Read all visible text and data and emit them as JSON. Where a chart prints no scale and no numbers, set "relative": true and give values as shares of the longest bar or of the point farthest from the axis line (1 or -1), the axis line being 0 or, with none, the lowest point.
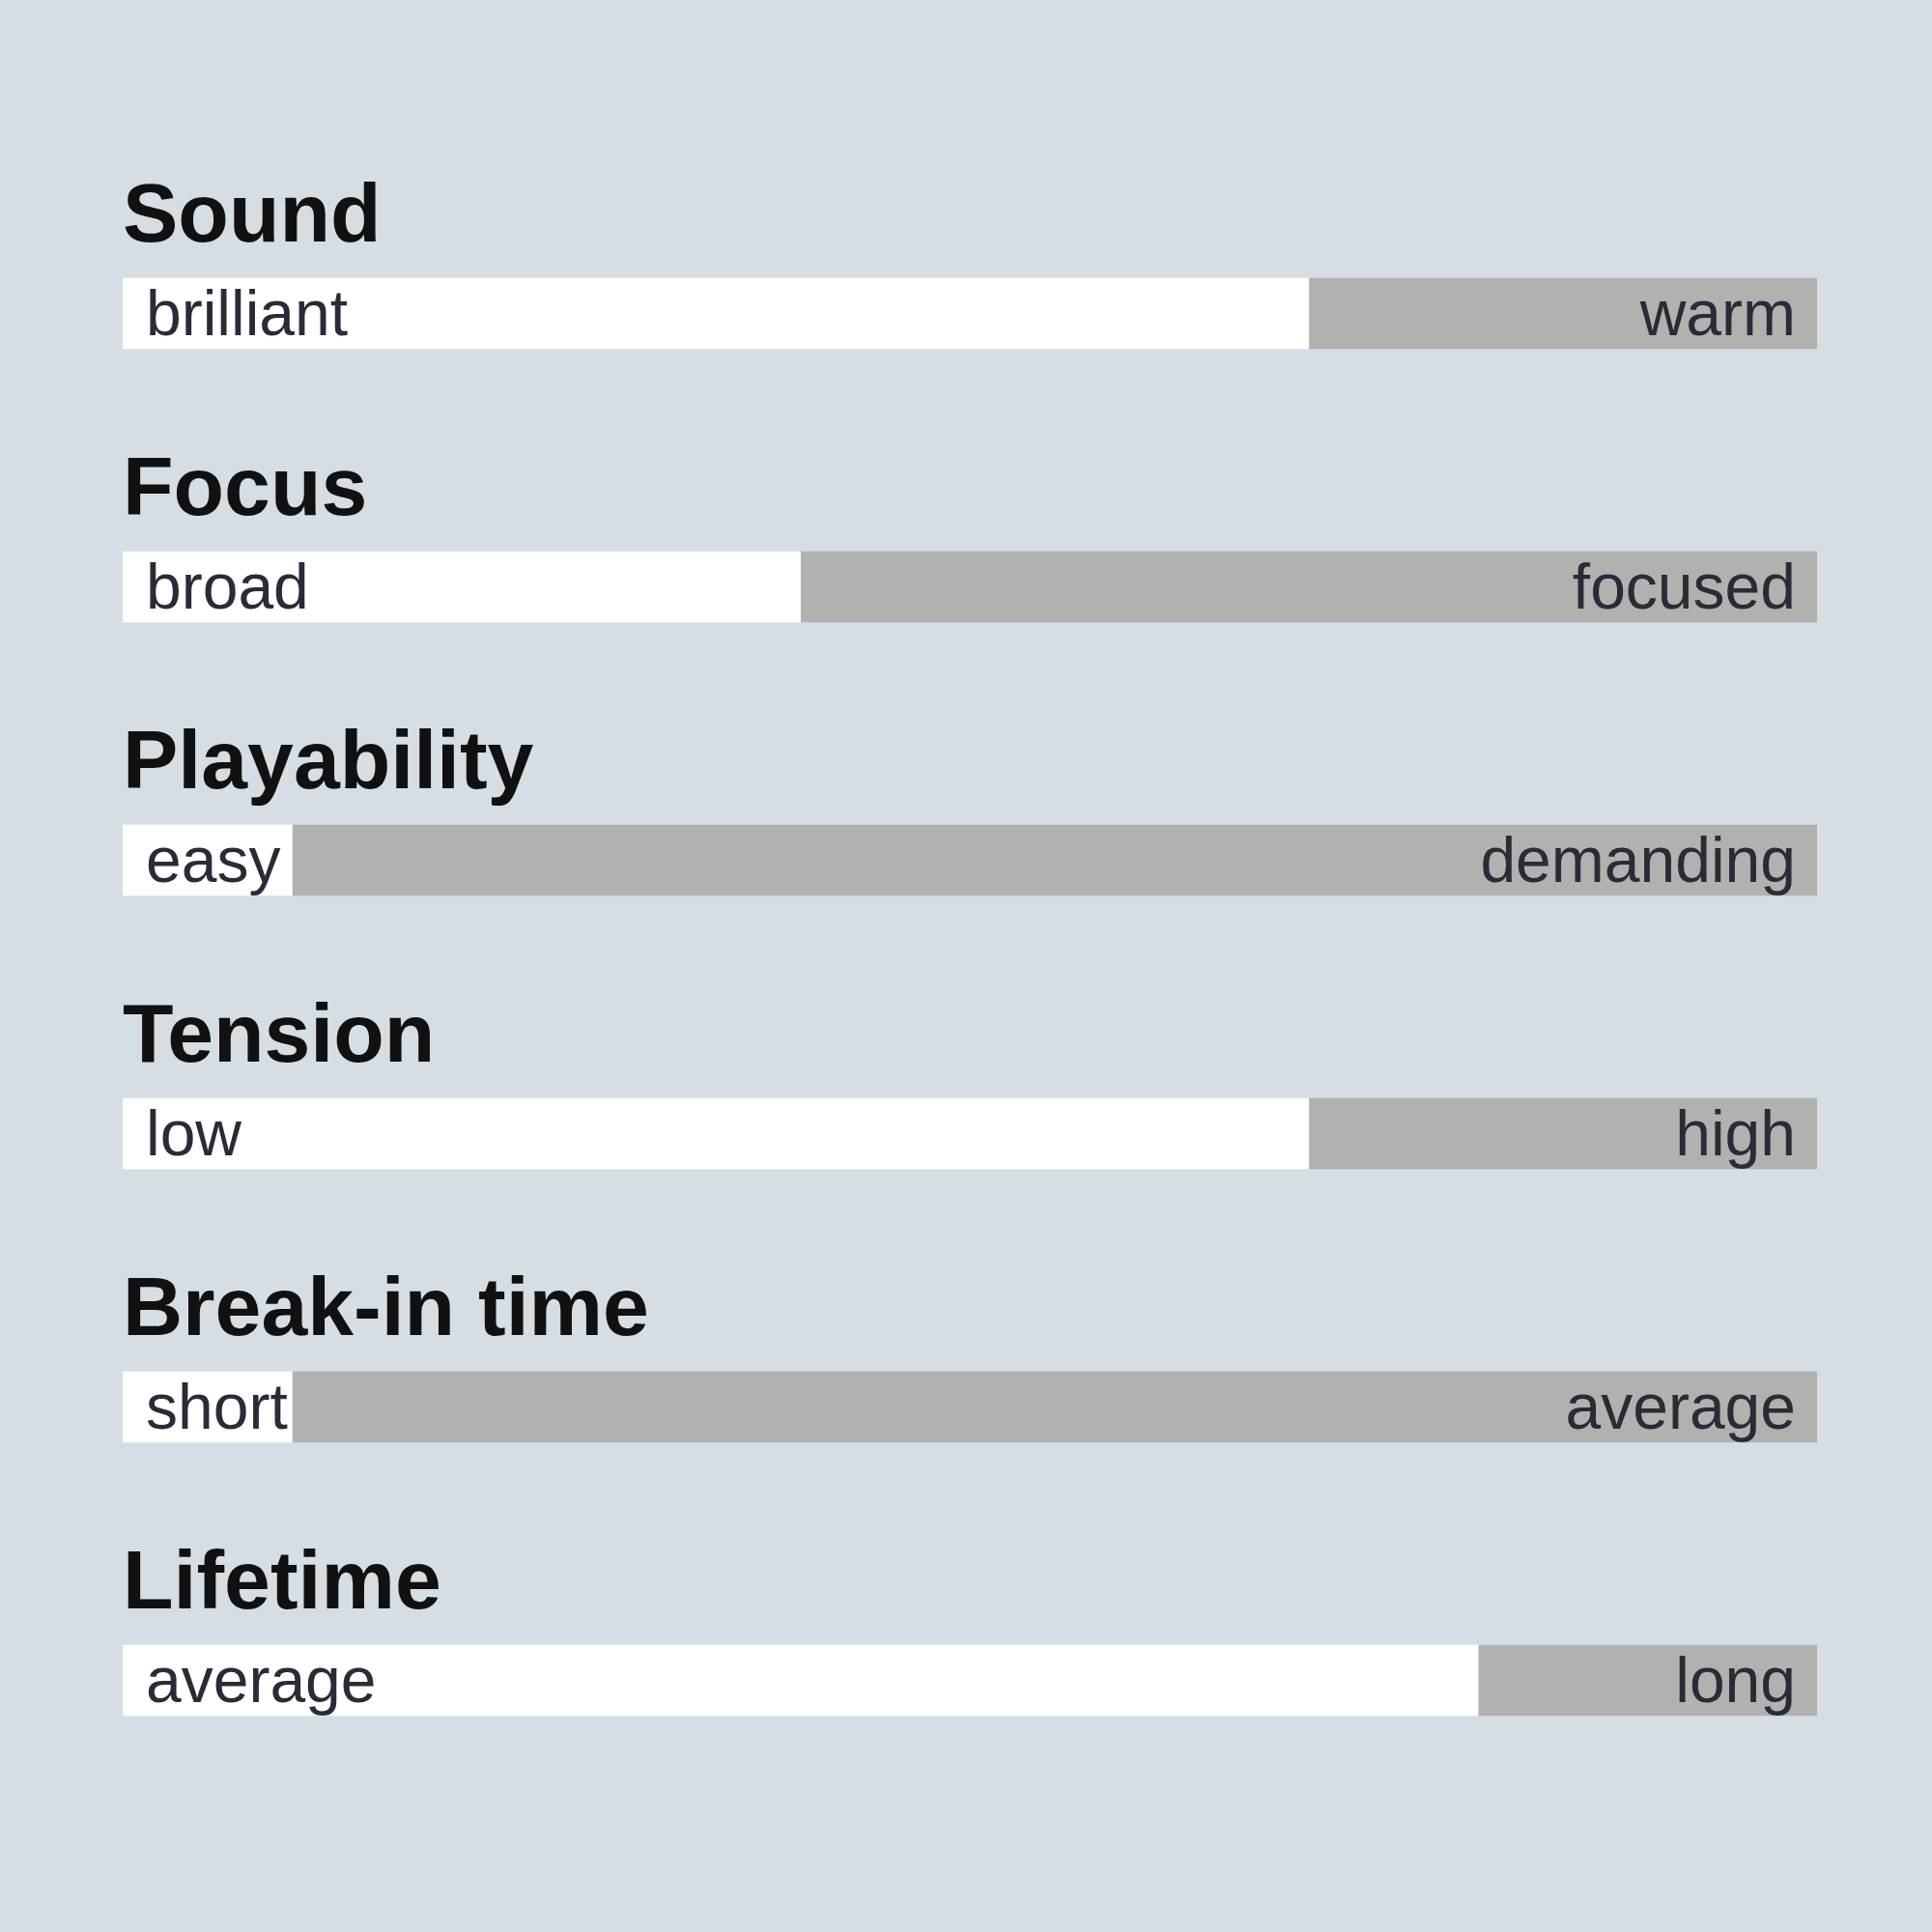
{
  "chart_data": {
    "type": "bar",
    "orientation": "horizontal",
    "stacked": true,
    "relative": true,
    "categories": [
      "Sound",
      "Focus",
      "Playability",
      "Tension",
      "Break-in time",
      "Lifetime"
    ],
    "series": [
      {
        "color": "#ffffff",
        "values": [
          0.7,
          0.4,
          0.1,
          0.7,
          0.1,
          0.8
        ]
      },
      {
        "color": "#b1b1af",
        "values": [
          0.3,
          0.6,
          0.9,
          0.3,
          0.9,
          0.2
        ]
      }
    ],
    "annotations": [
      "brilliant",
      "warm",
      "broad",
      "focused",
      "easy",
      "demanding",
      "low",
      "high",
      "short",
      "average",
      "average",
      "long"
    ]
  }
}
